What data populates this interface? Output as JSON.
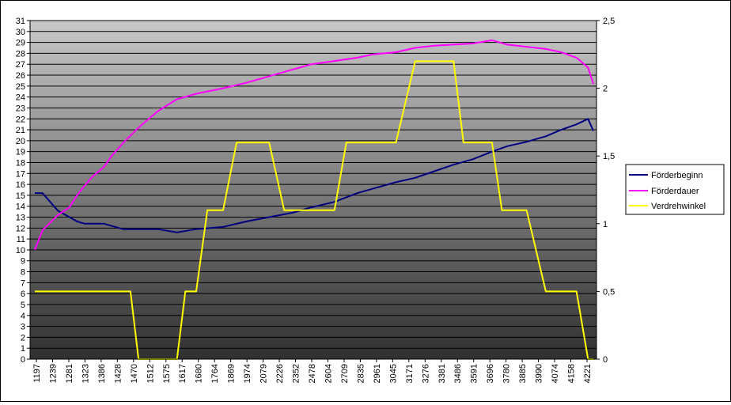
{
  "chart_data": {
    "type": "line",
    "title": "",
    "xlabel": "",
    "ylabel": "",
    "y2label": "",
    "ylim": [
      0,
      31
    ],
    "y2lim": [
      0,
      2.5
    ],
    "yticks": [
      0,
      1,
      2,
      3,
      4,
      5,
      6,
      7,
      8,
      9,
      10,
      11,
      12,
      13,
      14,
      15,
      16,
      17,
      18,
      19,
      20,
      21,
      22,
      23,
      24,
      25,
      26,
      27,
      28,
      29,
      30,
      31
    ],
    "y2ticks": [
      "0",
      "0,5",
      "1",
      "1,5",
      "2",
      "2,5"
    ],
    "y2tick_values": [
      0,
      0.5,
      1,
      1.5,
      2,
      2.5
    ],
    "grid": "horizontal",
    "legend_position": "right",
    "x_tick_labels": [
      "1197",
      "1239",
      "1281",
      "1323",
      "1386",
      "1428",
      "1470",
      "1512",
      "1575",
      "1617",
      "1680",
      "1764",
      "1869",
      "1974",
      "2079",
      "2226",
      "2352",
      "2478",
      "2604",
      "2709",
      "2835",
      "2961",
      "3045",
      "3171",
      "3276",
      "3381",
      "3486",
      "3591",
      "3696",
      "3780",
      "3885",
      "3990",
      "4074",
      "4158",
      "4221"
    ],
    "series": [
      {
        "name": "Förderbeginn",
        "axis": "left",
        "color": "#000080",
        "x": [
          1197,
          1239,
          1281,
          1323,
          1386,
          1428,
          1470,
          1512,
          1575,
          1617,
          1680,
          1764,
          1869,
          1974,
          2079,
          2226,
          2352,
          2478,
          2604,
          2709,
          2835,
          2961,
          3045,
          3171,
          3276,
          3381,
          3486,
          3591,
          3696,
          3780,
          3885,
          3990,
          4074,
          4158,
          4221,
          4250
        ],
        "values": [
          15.2,
          15.2,
          14.4,
          13.6,
          13.0,
          12.6,
          12.4,
          12.4,
          12.4,
          12.2,
          11.9,
          11.9,
          11.9,
          11.6,
          11.9,
          12.1,
          12.6,
          13.0,
          13.4,
          13.9,
          14.4,
          15.2,
          15.6,
          16.2,
          16.6,
          17.2,
          17.8,
          18.3,
          19.0,
          19.5,
          19.9,
          20.4,
          21.0,
          21.5,
          22.0,
          20.9
        ]
      },
      {
        "name": "Förderdauer",
        "axis": "left",
        "color": "#ff00ff",
        "x": [
          1197,
          1239,
          1281,
          1323,
          1386,
          1428,
          1470,
          1512,
          1575,
          1617,
          1680,
          1764,
          1869,
          1974,
          2079,
          2226,
          2352,
          2478,
          2604,
          2709,
          2835,
          2961,
          3045,
          3171,
          3276,
          3381,
          3486,
          3591,
          3696,
          3780,
          3885,
          3990,
          4074,
          4158,
          4221,
          4250
        ],
        "values": [
          10.0,
          11.8,
          12.5,
          13.2,
          13.9,
          15.0,
          15.9,
          16.7,
          17.6,
          18.6,
          19.8,
          21.2,
          22.7,
          23.8,
          24.3,
          24.8,
          25.3,
          25.9,
          26.5,
          27.0,
          27.3,
          27.6,
          27.9,
          28.1,
          28.5,
          28.7,
          28.8,
          28.9,
          29.2,
          28.8,
          28.6,
          28.4,
          28.1,
          27.6,
          26.7,
          25.2
        ]
      },
      {
        "name": "Verdrehwinkel",
        "axis": "right",
        "color": "#ffff00",
        "x": [
          1197,
          1680,
          1720,
          1764,
          1869,
          1974,
          2020,
          2079,
          2140,
          2226,
          2300,
          2352,
          2478,
          2560,
          2604,
          2709,
          2835,
          2900,
          2961,
          3045,
          3171,
          3276,
          3381,
          3486,
          3540,
          3591,
          3696,
          3750,
          3780,
          3885,
          3990,
          4074,
          4158,
          4221,
          4250
        ],
        "values": [
          0.5,
          0.5,
          0.5,
          0.0,
          0.0,
          0.0,
          0.5,
          0.5,
          1.1,
          1.1,
          1.6,
          1.6,
          1.6,
          1.1,
          1.1,
          1.1,
          1.1,
          1.6,
          1.6,
          1.6,
          1.6,
          2.2,
          2.2,
          2.2,
          1.6,
          1.6,
          1.6,
          1.1,
          1.1,
          1.1,
          0.5,
          0.5,
          0.5,
          0.0,
          0.0
        ]
      }
    ]
  }
}
